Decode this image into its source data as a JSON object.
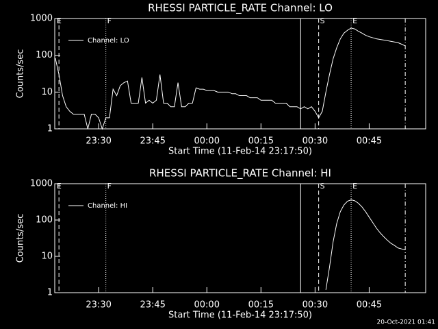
{
  "chart_data": [
    {
      "type": "line",
      "title": "RHESSI PARTICLE_RATE Channel: LO",
      "ylabel": "Counts/sec",
      "xlabel": "Start Time (11-Feb-14 23:17:50)",
      "log_y": true,
      "ylim": [
        1,
        1000
      ],
      "yticks": [
        1,
        10,
        100,
        1000
      ],
      "xlim": [
        "23:17:50",
        "01:00:40"
      ],
      "xticks": [
        "23:30",
        "23:45",
        "00:00",
        "00:15",
        "00:30",
        "00:45"
      ],
      "legend": "upper left",
      "markers": [
        {
          "x": "23:18",
          "label": "E"
        },
        {
          "x": "23:19",
          "style": "dashed"
        },
        {
          "x": "23:32",
          "style": "dotted",
          "label": "F"
        },
        {
          "x": "00:26",
          "style": "solid"
        },
        {
          "x": "00:31",
          "style": "dashed",
          "label": "S"
        },
        {
          "x": "00:40",
          "style": "dotted",
          "label": "E"
        },
        {
          "x": "00:55",
          "style": "dashdot"
        }
      ],
      "x": [
        "23:18",
        "23:19",
        "23:20",
        "23:21",
        "23:22",
        "23:23",
        "23:24",
        "23:25",
        "23:26",
        "23:27",
        "23:28",
        "23:29",
        "23:30",
        "23:31",
        "23:32",
        "23:33",
        "23:34",
        "23:35",
        "23:36",
        "23:37",
        "23:38",
        "23:39",
        "23:40",
        "23:41",
        "23:42",
        "23:43",
        "23:44",
        "23:45",
        "23:46",
        "23:47",
        "23:48",
        "23:49",
        "23:50",
        "23:51",
        "23:52",
        "23:53",
        "23:54",
        "23:55",
        "23:56",
        "23:57",
        "23:58",
        "23:59",
        "00:00",
        "00:01",
        "00:02",
        "00:03",
        "00:04",
        "00:05",
        "00:06",
        "00:07",
        "00:08",
        "00:09",
        "00:10",
        "00:11",
        "00:12",
        "00:13",
        "00:14",
        "00:15",
        "00:16",
        "00:17",
        "00:18",
        "00:19",
        "00:20",
        "00:21",
        "00:22",
        "00:23",
        "00:24",
        "00:25",
        "00:26",
        "00:27",
        "00:28",
        "00:29",
        "00:30",
        "00:31",
        "00:32",
        "00:33",
        "00:34",
        "00:35",
        "00:36",
        "00:37",
        "00:38",
        "00:39",
        "00:40",
        "00:41",
        "00:42",
        "00:43",
        "00:44",
        "00:45",
        "00:46",
        "00:47",
        "00:48",
        "00:49",
        "00:50",
        "00:51",
        "00:52",
        "00:53",
        "00:54",
        "00:55"
      ],
      "series": [
        {
          "name": "Channel: LO",
          "color": "#ffffff",
          "values": [
            83,
            30,
            8,
            4,
            3,
            2.5,
            2.5,
            2.5,
            2.5,
            1,
            2.5,
            2.5,
            2,
            1,
            2,
            2,
            12,
            8,
            15,
            18,
            20,
            5,
            5,
            5,
            25,
            5,
            6,
            5,
            6,
            30,
            5,
            5,
            4,
            4,
            18,
            4,
            4,
            5,
            5,
            13,
            12,
            12,
            11,
            11,
            11,
            10,
            10,
            10,
            10,
            9,
            9,
            8,
            8,
            8,
            7,
            7,
            7,
            6,
            6,
            6,
            6,
            5,
            5,
            5,
            5,
            4,
            4,
            4,
            3.5,
            4,
            3.5,
            4,
            3,
            2,
            3,
            10,
            30,
            80,
            160,
            280,
            400,
            480,
            550,
            520,
            450,
            400,
            350,
            320,
            300,
            280,
            270,
            260,
            250,
            240,
            230,
            220,
            200,
            180
          ]
        }
      ]
    },
    {
      "type": "line",
      "title": "RHESSI PARTICLE_RATE Channel: HI",
      "ylabel": "Counts/sec",
      "xlabel": "Start Time (11-Feb-14 23:17:50)",
      "log_y": true,
      "ylim": [
        1,
        1000
      ],
      "yticks": [
        1,
        10,
        100,
        1000
      ],
      "xlim": [
        "23:17:50",
        "01:00:40"
      ],
      "xticks": [
        "23:30",
        "23:45",
        "00:00",
        "00:15",
        "00:30",
        "00:45"
      ],
      "legend": "upper left",
      "markers": [
        {
          "x": "23:18",
          "label": "E"
        },
        {
          "x": "23:19",
          "style": "dashed"
        },
        {
          "x": "23:32",
          "style": "dotted",
          "label": "F"
        },
        {
          "x": "00:26",
          "style": "solid"
        },
        {
          "x": "00:31",
          "style": "dashed",
          "label": "S"
        },
        {
          "x": "00:40",
          "style": "dotted",
          "label": "E"
        },
        {
          "x": "00:55",
          "style": "dashdot"
        }
      ],
      "x": [
        "00:33",
        "00:34",
        "00:35",
        "00:36",
        "00:37",
        "00:38",
        "00:39",
        "00:40",
        "00:41",
        "00:42",
        "00:43",
        "00:44",
        "00:45",
        "00:46",
        "00:47",
        "00:48",
        "00:49",
        "00:50",
        "00:51",
        "00:52",
        "00:53",
        "00:54",
        "00:55"
      ],
      "series": [
        {
          "name": "Channel: HI",
          "color": "#ffffff",
          "values": [
            1.2,
            5,
            25,
            80,
            170,
            260,
            330,
            360,
            340,
            290,
            230,
            170,
            120,
            85,
            60,
            45,
            35,
            28,
            23,
            20,
            17,
            16,
            15
          ]
        }
      ]
    }
  ],
  "footer": "20-Oct-2021 01:41"
}
